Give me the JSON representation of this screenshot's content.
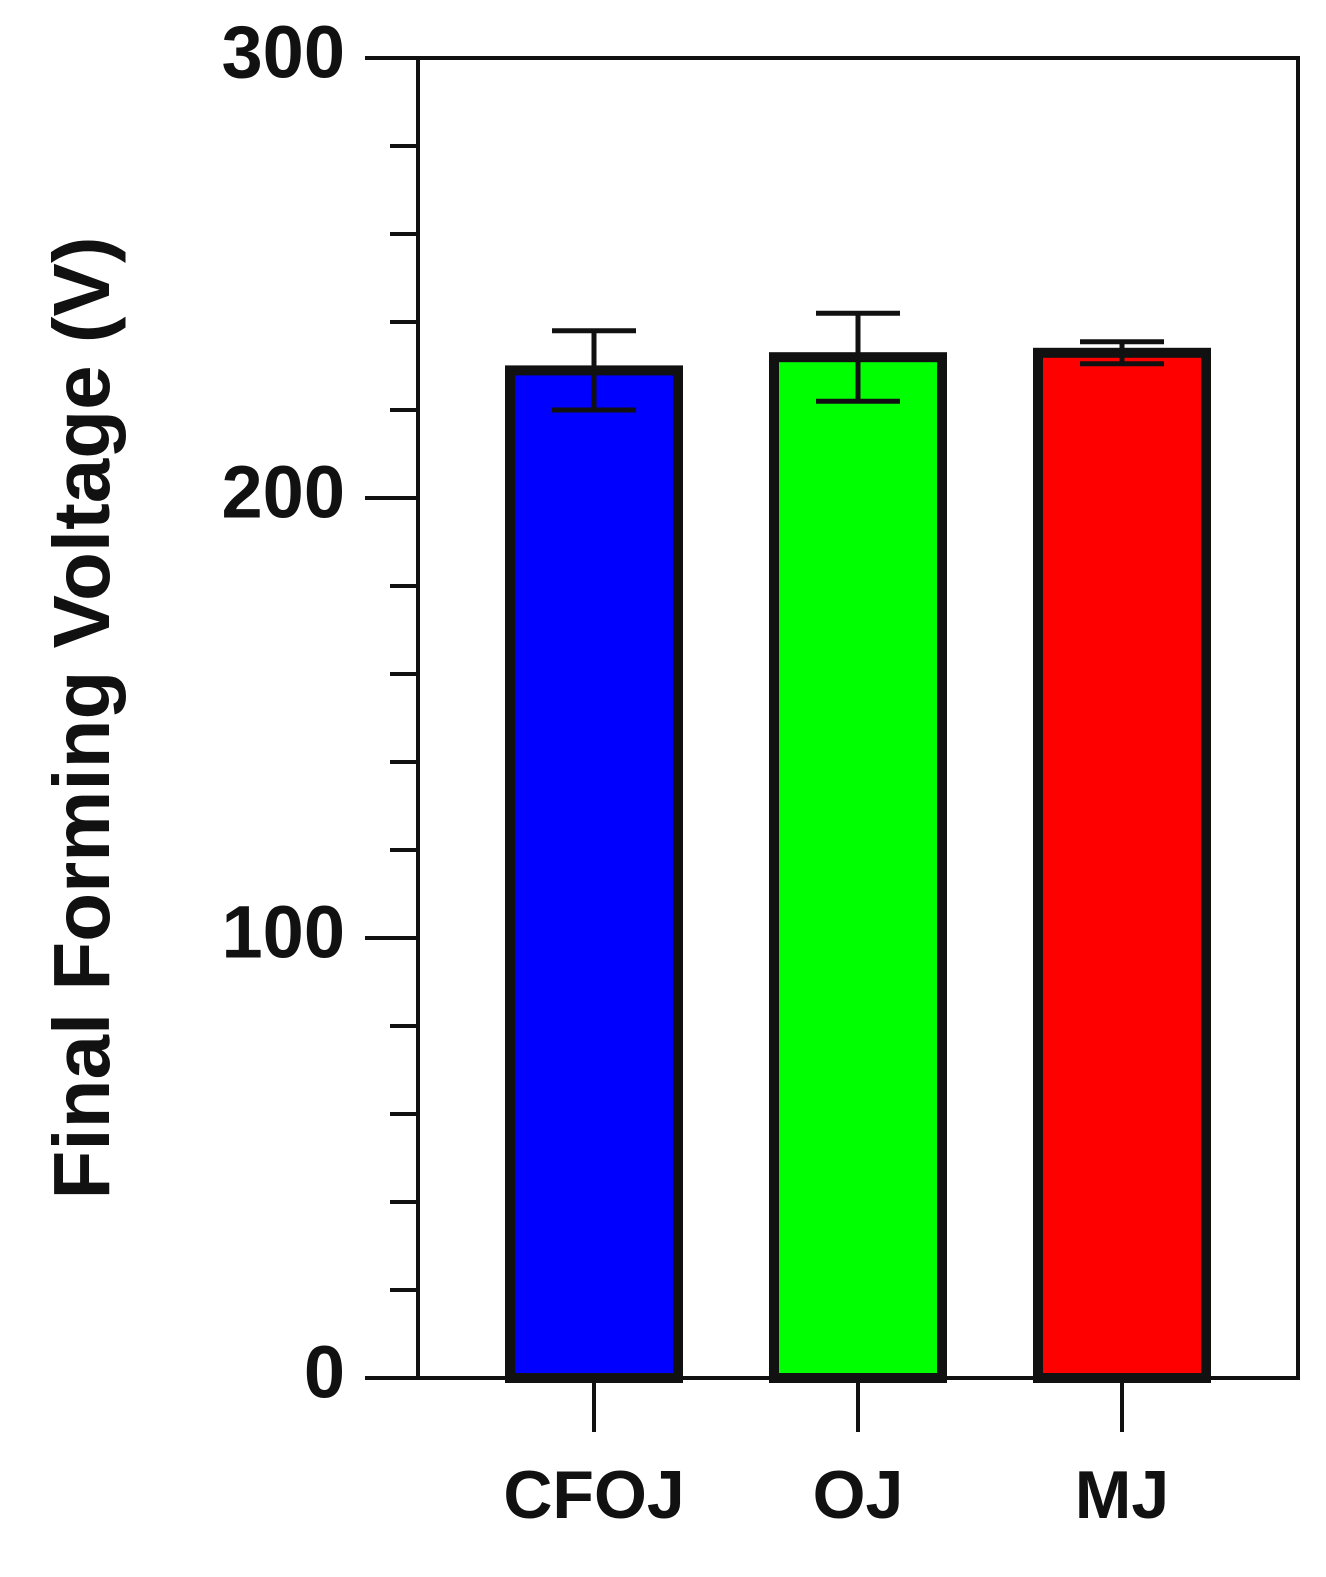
{
  "chart_data": {
    "type": "bar",
    "y_label": "Final Forming Voltage (V)",
    "categories": [
      "CFOJ",
      "OJ",
      "MJ"
    ],
    "values": [
      229,
      232,
      233
    ],
    "errors": [
      9,
      10,
      2.5
    ],
    "colors": [
      "#0000ff",
      "#00ff00",
      "#ff0000"
    ],
    "ylim": [
      0,
      300
    ],
    "yticks": [
      0,
      100,
      200,
      300
    ],
    "yminor": [
      20,
      40,
      60,
      80,
      120,
      140,
      160,
      180,
      220,
      240,
      260,
      280
    ]
  }
}
